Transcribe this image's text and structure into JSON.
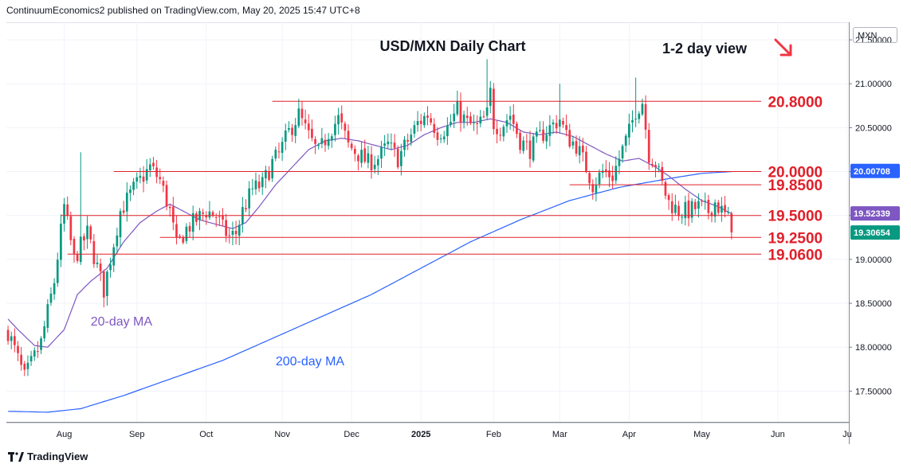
{
  "header": {
    "publisher": "ContinuumEconomics2 published on TradingView.com, May 20, 2025 15:47 UTC+8"
  },
  "footer": {
    "brand": "TradingView"
  },
  "colors": {
    "up": "#089981",
    "down": "#f23645",
    "ma20": "#7e57c2",
    "ma200": "#2962ff",
    "level_line": "#e0202a",
    "level_text": "#e0202a",
    "annotation_ma20": "#7e57c2",
    "annotation_ma200": "#2962ff"
  },
  "icons": {
    "view_arrow": "arrow-down-right-icon",
    "brand_logo": "tradingview-logo-icon"
  },
  "chart_data": {
    "type": "candlestick",
    "title": "USD/MXN Daily Chart",
    "subtitle": "1-2 day view",
    "currency": "MXN",
    "ylim": [
      17.15,
      21.7
    ],
    "y_ticks": [
      {
        "value": 21.5,
        "label": "21.50000"
      },
      {
        "value": 21.0,
        "label": "21.00000"
      },
      {
        "value": 20.5,
        "label": "20.50000"
      },
      {
        "value": 20.0,
        "label": "20.00000"
      },
      {
        "value": 19.5,
        "label": "19.50000"
      },
      {
        "value": 19.0,
        "label": "19.00000"
      },
      {
        "value": 18.5,
        "label": "18.50000"
      },
      {
        "value": 18.0,
        "label": "18.00000"
      },
      {
        "value": 17.5,
        "label": "17.50000"
      }
    ],
    "x_ticks": [
      {
        "label": "Aug",
        "idx": 17
      },
      {
        "label": "Sep",
        "idx": 39
      },
      {
        "label": "Oct",
        "idx": 60
      },
      {
        "label": "Nov",
        "idx": 83
      },
      {
        "label": "Dec",
        "idx": 104
      },
      {
        "label": "2025",
        "idx": 125,
        "bold": true
      },
      {
        "label": "Feb",
        "idx": 147
      },
      {
        "label": "Mar",
        "idx": 167
      },
      {
        "label": "Apr",
        "idx": 188
      },
      {
        "label": "May",
        "idx": 210
      },
      {
        "label": "Jun",
        "idx": 233
      },
      {
        "label": "Ju",
        "idx": 254
      }
    ],
    "x_domain": [
      -0.5,
      254.5
    ],
    "levels": [
      {
        "value": 20.8,
        "label": "20.8000",
        "x_from_idx": 80
      },
      {
        "value": 20.0,
        "label": "20.0000",
        "x_from_idx": 32
      },
      {
        "value": 19.85,
        "label": "19.8500",
        "x_from_idx": 170
      },
      {
        "value": 19.5,
        "label": "19.5000",
        "x_from_idx": 16
      },
      {
        "value": 19.25,
        "label": "19.2500",
        "x_from_idx": 46
      },
      {
        "value": 19.06,
        "label": "19.0600",
        "x_from_idx": 18
      }
    ],
    "price_tags": [
      {
        "value": 20.00708,
        "label": "20.00708",
        "color": "#2962ff"
      },
      {
        "value": 19.52339,
        "label": "19.52339",
        "color": "#7e57c2"
      },
      {
        "value": 19.30654,
        "label": "19.30654",
        "color": "#089981"
      }
    ],
    "annotations": [
      {
        "text": "20-day MA",
        "value": 18.3,
        "idx": 25
      },
      {
        "text": "200-day MA",
        "value": 17.85,
        "idx": 81
      }
    ],
    "anchors": [
      [
        0,
        18.18
      ],
      [
        5,
        17.65
      ],
      [
        10,
        18.05
      ],
      [
        14,
        18.75
      ],
      [
        17,
        19.6
      ],
      [
        20,
        19.0
      ],
      [
        24,
        19.3
      ],
      [
        29,
        18.65
      ],
      [
        34,
        19.55
      ],
      [
        38,
        19.8
      ],
      [
        43,
        20.05
      ],
      [
        46,
        19.9
      ],
      [
        49,
        19.55
      ],
      [
        51,
        19.15
      ],
      [
        54,
        19.35
      ],
      [
        57,
        19.45
      ],
      [
        60,
        19.55
      ],
      [
        63,
        19.5
      ],
      [
        65,
        19.35
      ],
      [
        67,
        19.25
      ],
      [
        69,
        19.3
      ],
      [
        71,
        19.55
      ],
      [
        74,
        19.8
      ],
      [
        77,
        19.85
      ],
      [
        80,
        20.1
      ],
      [
        82,
        20.2
      ],
      [
        85,
        20.45
      ],
      [
        88,
        20.65
      ],
      [
        91,
        20.4
      ],
      [
        94,
        20.2
      ],
      [
        97,
        20.45
      ],
      [
        100,
        20.6
      ],
      [
        103,
        20.3
      ],
      [
        106,
        20.2
      ],
      [
        109,
        20.1
      ],
      [
        112,
        20.15
      ],
      [
        115,
        20.3
      ],
      [
        118,
        20.15
      ],
      [
        121,
        20.35
      ],
      [
        124,
        20.55
      ],
      [
        127,
        20.65
      ],
      [
        130,
        20.45
      ],
      [
        133,
        20.5
      ],
      [
        136,
        20.7
      ],
      [
        139,
        20.55
      ],
      [
        142,
        20.5
      ],
      [
        145,
        20.65
      ],
      [
        146,
        20.9
      ],
      [
        147,
        20.55
      ],
      [
        149,
        20.5
      ],
      [
        152,
        20.65
      ],
      [
        155,
        20.35
      ],
      [
        158,
        20.25
      ],
      [
        161,
        20.4
      ],
      [
        164,
        20.5
      ],
      [
        167,
        20.6
      ],
      [
        169,
        20.4
      ],
      [
        172,
        20.3
      ],
      [
        175,
        20.05
      ],
      [
        177,
        19.85
      ],
      [
        180,
        20.0
      ],
      [
        183,
        19.95
      ],
      [
        186,
        20.25
      ],
      [
        188,
        20.45
      ],
      [
        190,
        20.7
      ],
      [
        192,
        20.8
      ],
      [
        194,
        20.2
      ],
      [
        196,
        20.1
      ],
      [
        198,
        19.85
      ],
      [
        200,
        19.65
      ],
      [
        203,
        19.55
      ],
      [
        206,
        19.55
      ],
      [
        209,
        19.6
      ],
      [
        212,
        19.55
      ],
      [
        214,
        19.65
      ],
      [
        216,
        19.55
      ],
      [
        218,
        19.45
      ],
      [
        219,
        19.31
      ]
    ],
    "ma20_anchors": [
      [
        0,
        18.32
      ],
      [
        3,
        18.2
      ],
      [
        8,
        18.02
      ],
      [
        12,
        18.0
      ],
      [
        17,
        18.2
      ],
      [
        21,
        18.6
      ],
      [
        25,
        18.75
      ],
      [
        30,
        18.9
      ],
      [
        35,
        19.2
      ],
      [
        40,
        19.42
      ],
      [
        45,
        19.55
      ],
      [
        49,
        19.63
      ],
      [
        53,
        19.55
      ],
      [
        58,
        19.45
      ],
      [
        63,
        19.4
      ],
      [
        68,
        19.35
      ],
      [
        72,
        19.42
      ],
      [
        76,
        19.6
      ],
      [
        81,
        19.85
      ],
      [
        86,
        20.05
      ],
      [
        91,
        20.25
      ],
      [
        96,
        20.35
      ],
      [
        101,
        20.38
      ],
      [
        106,
        20.35
      ],
      [
        111,
        20.3
      ],
      [
        116,
        20.25
      ],
      [
        121,
        20.3
      ],
      [
        126,
        20.42
      ],
      [
        131,
        20.5
      ],
      [
        136,
        20.56
      ],
      [
        141,
        20.56
      ],
      [
        146,
        20.6
      ],
      [
        151,
        20.56
      ],
      [
        156,
        20.45
      ],
      [
        161,
        20.42
      ],
      [
        166,
        20.45
      ],
      [
        171,
        20.4
      ],
      [
        176,
        20.3
      ],
      [
        181,
        20.2
      ],
      [
        186,
        20.12
      ],
      [
        191,
        20.15
      ],
      [
        196,
        20.05
      ],
      [
        200,
        19.95
      ],
      [
        205,
        19.8
      ],
      [
        210,
        19.67
      ],
      [
        215,
        19.6
      ],
      [
        219,
        19.52
      ]
    ],
    "ma200_anchors": [
      [
        0,
        17.27
      ],
      [
        12,
        17.26
      ],
      [
        22,
        17.3
      ],
      [
        35,
        17.45
      ],
      [
        50,
        17.65
      ],
      [
        65,
        17.85
      ],
      [
        80,
        18.1
      ],
      [
        95,
        18.35
      ],
      [
        110,
        18.6
      ],
      [
        125,
        18.9
      ],
      [
        140,
        19.2
      ],
      [
        155,
        19.45
      ],
      [
        170,
        19.67
      ],
      [
        185,
        19.82
      ],
      [
        200,
        19.92
      ],
      [
        210,
        19.98
      ],
      [
        219,
        20.0
      ]
    ],
    "spikes": [
      {
        "idx": 22,
        "high": 20.22
      },
      {
        "idx": 89,
        "high": 20.8
      },
      {
        "idx": 145,
        "high": 21.28
      },
      {
        "idx": 167,
        "high": 21.0
      },
      {
        "idx": 190,
        "high": 21.07
      }
    ]
  }
}
